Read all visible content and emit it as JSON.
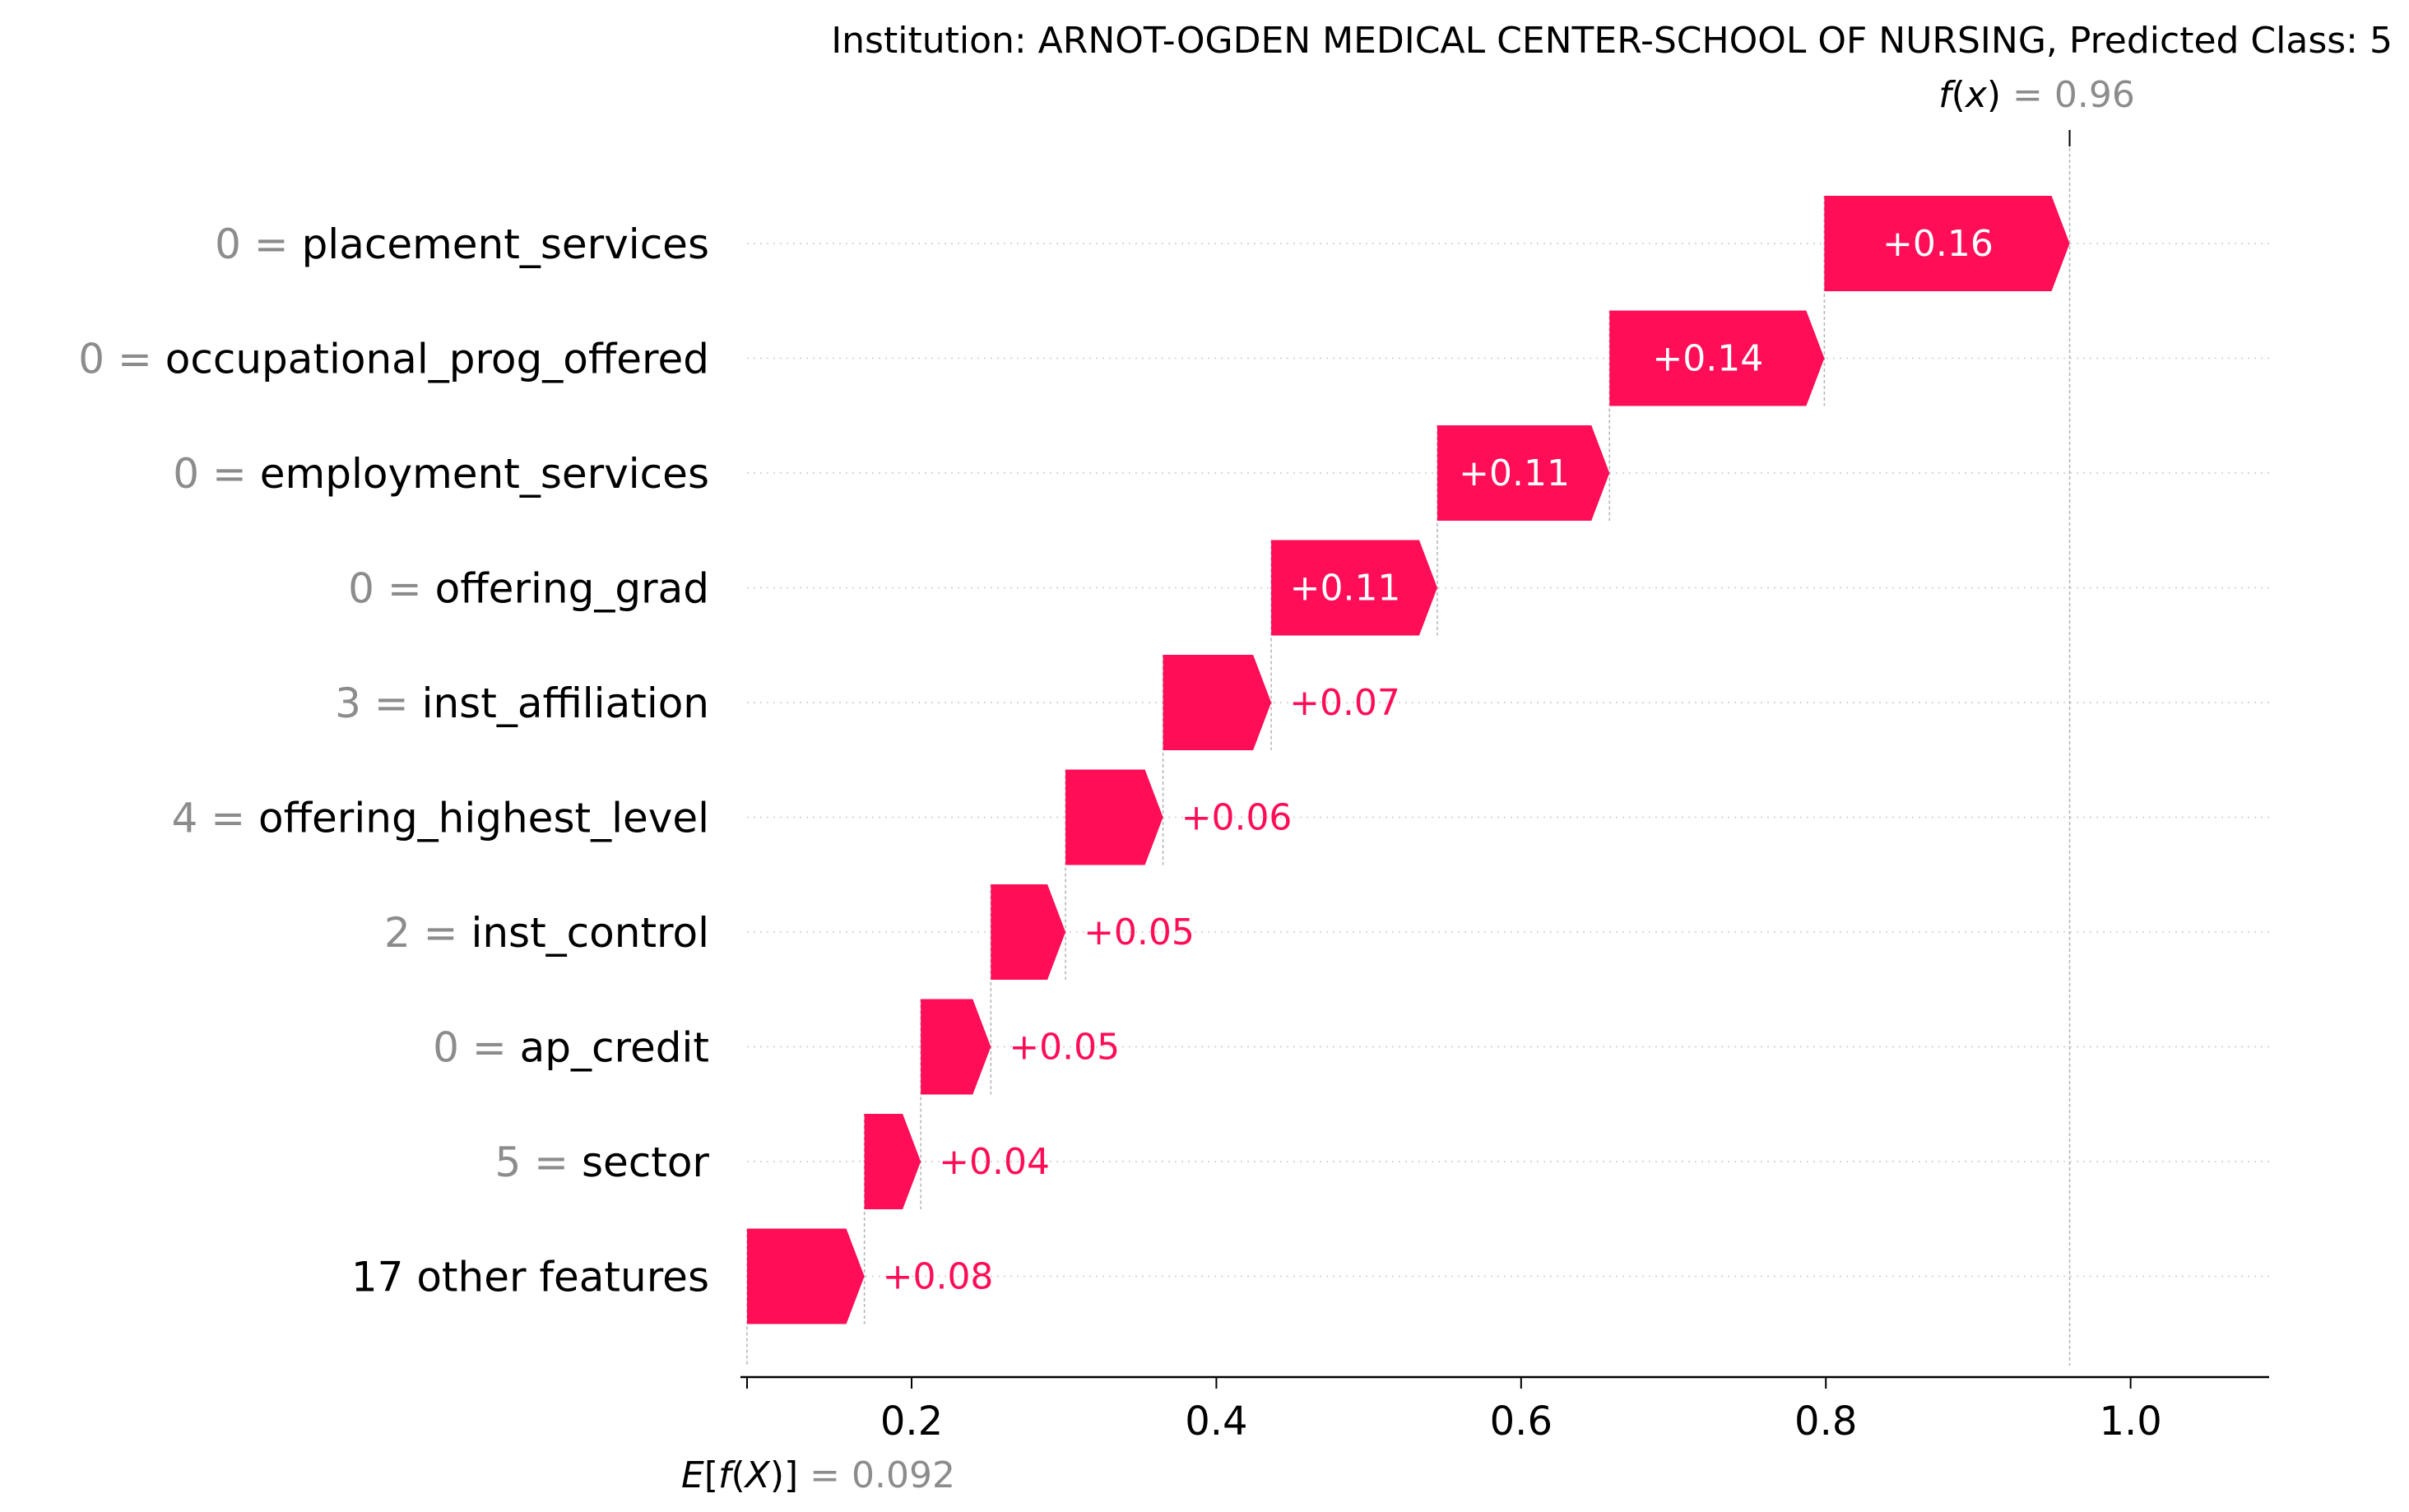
{
  "chart_data": {
    "type": "waterfall",
    "title": "Institution: ARNOT-OGDEN MEDICAL CENTER-SCHOOL OF NURSING, Predicted Class: 5",
    "fx": {
      "label_func": "f",
      "label_arg": "x",
      "label_eq": "= 0.96",
      "value": 0.96
    },
    "base": {
      "label_e": "E",
      "label_func": "f",
      "label_arg": "X",
      "label_eq": "= 0.092",
      "value": 0.092
    },
    "xlim": [
      0.092,
      1.1
    ],
    "xticks": [
      {
        "value": 0.2,
        "label": "0.2"
      },
      {
        "value": 0.4,
        "label": "0.4"
      },
      {
        "value": 0.6,
        "label": "0.6"
      },
      {
        "value": 0.8,
        "label": "0.8"
      },
      {
        "value": 1.0,
        "label": "1.0"
      }
    ],
    "positive_color": "#ff0d57",
    "features": [
      {
        "value_text": "0",
        "name": "placement_services",
        "start": 0.799,
        "end": 0.96,
        "label": "+0.16"
      },
      {
        "value_text": "0",
        "name": "occupational_prog_offered",
        "start": 0.658,
        "end": 0.799,
        "label": "+0.14"
      },
      {
        "value_text": "0",
        "name": "employment_services",
        "start": 0.545,
        "end": 0.658,
        "label": "+0.11"
      },
      {
        "value_text": "0",
        "name": "offering_grad",
        "start": 0.436,
        "end": 0.545,
        "label": "+0.11"
      },
      {
        "value_text": "3",
        "name": "inst_affiliation",
        "start": 0.365,
        "end": 0.436,
        "label": "+0.07"
      },
      {
        "value_text": "4",
        "name": "offering_highest_level",
        "start": 0.301,
        "end": 0.365,
        "label": "+0.06"
      },
      {
        "value_text": "2",
        "name": "inst_control",
        "start": 0.252,
        "end": 0.301,
        "label": "+0.05"
      },
      {
        "value_text": "0",
        "name": "ap_credit",
        "start": 0.206,
        "end": 0.252,
        "label": "+0.05"
      },
      {
        "value_text": "5",
        "name": "sector",
        "start": 0.169,
        "end": 0.206,
        "label": "+0.04"
      },
      {
        "value_text": "",
        "name": "17 other features",
        "start": 0.092,
        "end": 0.169,
        "label": "+0.08"
      }
    ]
  }
}
